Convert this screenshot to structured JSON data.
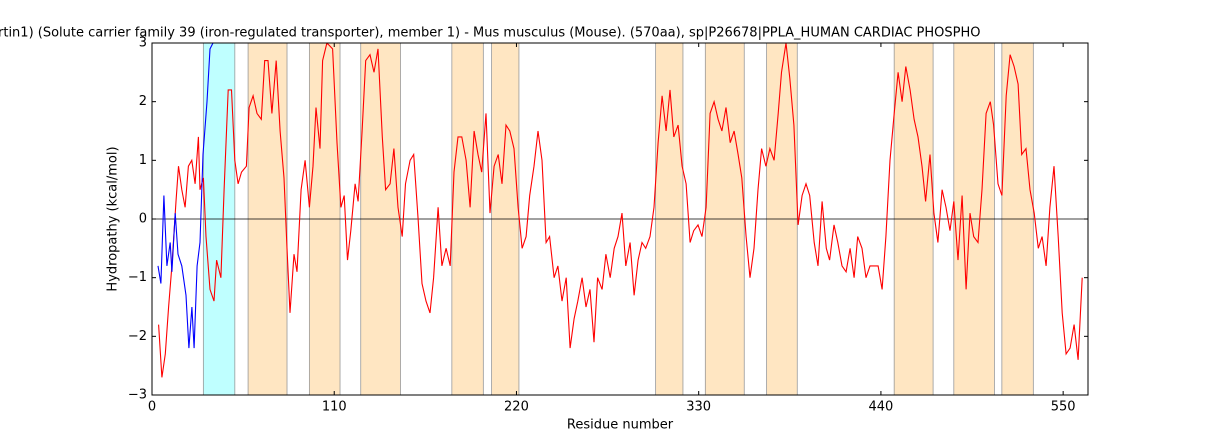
{
  "chart_data": {
    "type": "line",
    "title": "rtin1) (Solute carrier family 39 (iron-regulated transporter), member 1) - Mus musculus (Mouse). (570aa), sp|P26678|PPLA_HUMAN CARDIAC PHOSPHO",
    "x_label": "Residue number",
    "y_label": "Hydropathy (kcal/mol)",
    "xlim": [
      0,
      565
    ],
    "ylim": [
      -3,
      3
    ],
    "xticks": [
      0,
      110,
      220,
      330,
      440,
      550
    ],
    "yticks": [
      {
        "value": -3,
        "label": "−3"
      },
      {
        "value": -2,
        "label": "−2"
      },
      {
        "value": -1,
        "label": "−1"
      },
      0,
      1,
      2,
      3
    ],
    "reference_line": 0,
    "regions": [
      {
        "start": 31,
        "end": 50,
        "color": "#bfffff"
      },
      {
        "start": 58,
        "end": 81.5,
        "color": "#ffe6c2"
      },
      {
        "start": 95,
        "end": 113.5,
        "color": "#ffe6c2"
      },
      {
        "start": 126,
        "end": 150,
        "color": "#ffe6c2"
      },
      {
        "start": 181,
        "end": 200,
        "color": "#ffe6c2"
      },
      {
        "start": 205,
        "end": 221.5,
        "color": "#ffe6c2"
      },
      {
        "start": 304,
        "end": 320.5,
        "color": "#ffe6c2"
      },
      {
        "start": 334,
        "end": 357.5,
        "color": "#ffe6c2"
      },
      {
        "start": 371,
        "end": 389.5,
        "color": "#ffe6c2"
      },
      {
        "start": 448,
        "end": 471.5,
        "color": "#ffe6c2"
      },
      {
        "start": 484,
        "end": 508.5,
        "color": "#ffe6c2"
      },
      {
        "start": 513,
        "end": 532,
        "color": "#ffe6c2"
      }
    ],
    "series": [
      {
        "color": "#ff0000",
        "x": [
          4,
          6,
          8,
          10,
          12,
          14.5,
          16,
          18,
          20,
          22,
          24,
          26,
          28,
          29,
          31,
          32.6,
          35,
          37.4,
          39,
          41.6,
          43.5,
          46,
          48,
          50,
          52,
          54,
          57,
          58.6,
          61,
          63.4,
          66,
          68,
          70,
          72.4,
          75,
          77.3,
          79.7,
          81.5,
          83.3,
          85.7,
          87.5,
          90,
          92.4,
          95,
          97.2,
          99,
          101.4,
          103,
          105.6,
          109,
          111.7,
          114,
          116,
          118,
          120,
          122.6,
          124.4,
          126.8,
          129,
          131.6,
          134,
          136.4,
          139,
          141,
          143.7,
          146,
          148.5,
          151,
          153,
          155.8,
          158,
          160.6,
          163,
          165.4,
          167.8,
          170,
          172.7,
          175,
          177.5,
          180,
          182.3,
          184.7,
          187,
          189.6,
          192,
          194.4,
          196.8,
          199,
          201.6,
          204,
          206.5,
          209,
          211.3,
          213.7,
          216,
          218.5,
          221,
          223.4,
          225.8,
          228,
          230.6,
          233,
          235.4,
          237.9,
          240,
          242.7,
          245,
          247.5,
          250,
          252.4,
          254.8,
          257,
          259.6,
          262,
          264.4,
          266.8,
          269,
          271.7,
          274,
          276.6,
          279,
          281.3,
          283.7,
          286,
          288.6,
          291,
          293.4,
          295.8,
          298,
          300.6,
          303,
          305.5,
          307.9,
          310.3,
          312.7,
          315,
          317.6,
          320,
          322.4,
          324.8,
          327,
          329.6,
          332,
          334.5,
          336.9,
          339.3,
          341.7,
          344,
          346.5,
          349,
          351.4,
          353.8,
          356,
          358.6,
          361,
          363.4,
          365.8,
          368,
          370.6,
          373,
          375.5,
          378,
          380,
          382.7,
          385,
          387.5,
          390,
          392.4,
          394.8,
          397,
          399.7,
          402,
          404.5,
          407,
          409,
          411.7,
          414,
          416.5,
          419,
          421.4,
          423.8,
          426,
          428.6,
          431,
          433.4,
          435.9,
          438.3,
          440.7,
          443,
          445.5,
          448,
          450.4,
          452.8,
          455,
          457.6,
          460,
          462.4,
          464.8,
          467,
          469.6,
          472,
          474.4,
          476.9,
          479.3,
          481.7,
          484,
          486.5,
          489,
          491.4,
          493.8,
          496,
          498.6,
          501,
          503.5,
          506,
          508,
          510.7,
          513,
          515.6,
          518,
          520.4,
          522.8,
          525,
          527.6,
          530,
          532.5,
          535,
          537.3,
          539.7,
          542,
          544.5,
          547,
          549.4,
          551.8,
          554.2,
          556.6,
          559,
          561.5
        ],
        "values": [
          -1.8,
          -2.7,
          -2.3,
          -1.5,
          -0.8,
          0.3,
          0.9,
          0.5,
          0.2,
          0.9,
          1.0,
          0.6,
          1.4,
          0.5,
          0.7,
          -0.3,
          -1.2,
          -1.4,
          -0.7,
          -1.0,
          0.5,
          2.2,
          2.2,
          1.0,
          0.6,
          0.8,
          0.9,
          1.9,
          2.1,
          1.8,
          1.7,
          2.7,
          2.7,
          1.8,
          2.7,
          1.5,
          0.7,
          -0.5,
          -1.6,
          -0.6,
          -0.9,
          0.5,
          1.0,
          0.2,
          0.9,
          1.9,
          1.2,
          2.7,
          3.0,
          2.9,
          1.3,
          0.2,
          0.4,
          -0.7,
          -0.2,
          0.6,
          0.3,
          1.5,
          2.7,
          2.8,
          2.5,
          2.9,
          1.4,
          0.5,
          0.6,
          1.2,
          0.2,
          -0.3,
          0.6,
          1.0,
          1.1,
          0.0,
          -1.1,
          -1.4,
          -1.6,
          -1.0,
          0.2,
          -0.8,
          -0.5,
          -0.8,
          0.8,
          1.4,
          1.4,
          1.0,
          0.2,
          1.5,
          1.1,
          0.8,
          1.8,
          0.1,
          0.9,
          1.1,
          0.6,
          1.6,
          1.5,
          1.2,
          0.2,
          -0.5,
          -0.3,
          0.4,
          0.9,
          1.5,
          1.0,
          -0.4,
          -0.3,
          -1.0,
          -0.8,
          -1.4,
          -1.0,
          -2.2,
          -1.7,
          -1.4,
          -1.0,
          -1.5,
          -1.2,
          -2.1,
          -1.0,
          -1.2,
          -0.6,
          -1.0,
          -0.5,
          -0.3,
          0.1,
          -0.8,
          -0.4,
          -1.3,
          -0.7,
          -0.4,
          -0.5,
          -0.3,
          0.2,
          1.3,
          2.1,
          1.5,
          2.2,
          1.4,
          1.6,
          0.9,
          0.6,
          -0.4,
          -0.2,
          -0.1,
          -0.3,
          0.2,
          1.8,
          2.0,
          1.7,
          1.5,
          1.9,
          1.3,
          1.5,
          1.1,
          0.7,
          -0.3,
          -1.0,
          -0.5,
          0.5,
          1.2,
          0.9,
          1.2,
          1.0,
          1.8,
          2.5,
          3.0,
          2.4,
          1.6,
          -0.1,
          0.4,
          0.6,
          0.4,
          -0.4,
          -0.8,
          0.3,
          -0.5,
          -0.7,
          -0.1,
          -0.4,
          -0.8,
          -0.9,
          -0.5,
          -1.0,
          -0.3,
          -0.5,
          -1.0,
          -0.8,
          -0.8,
          -0.8,
          -1.2,
          -0.3,
          1.0,
          1.8,
          2.5,
          2.0,
          2.6,
          2.2,
          1.7,
          1.4,
          0.9,
          0.3,
          1.1,
          0.1,
          -0.4,
          0.5,
          0.2,
          -0.2,
          0.3,
          -0.7,
          0.4,
          -1.2,
          0.1,
          -0.3,
          -0.4,
          0.5,
          1.8,
          2.0,
          1.6,
          0.6,
          0.4,
          2.1,
          2.8,
          2.6,
          2.3,
          1.1,
          1.2,
          0.5,
          0.1,
          -0.5,
          -0.3,
          -0.8,
          0.2,
          0.9,
          -0.3,
          -1.6,
          -2.3,
          -2.2,
          -1.8,
          -2.4,
          -1.0
        ]
      },
      {
        "color": "#0000ff",
        "x": [
          3.6,
          5.4,
          7.2,
          9,
          11,
          12,
          14,
          15.7,
          18,
          20.5,
          22.3,
          24.1,
          25.4,
          27.2,
          29,
          30.8,
          33.2,
          35,
          36.8
        ],
        "values": [
          -0.8,
          -1.1,
          0.4,
          -0.8,
          -0.4,
          -0.9,
          0.1,
          -0.6,
          -0.8,
          -1.3,
          -2.2,
          -1.5,
          -2.2,
          -0.8,
          -0.4,
          1.1,
          2.0,
          2.9,
          3.0
        ]
      }
    ]
  }
}
